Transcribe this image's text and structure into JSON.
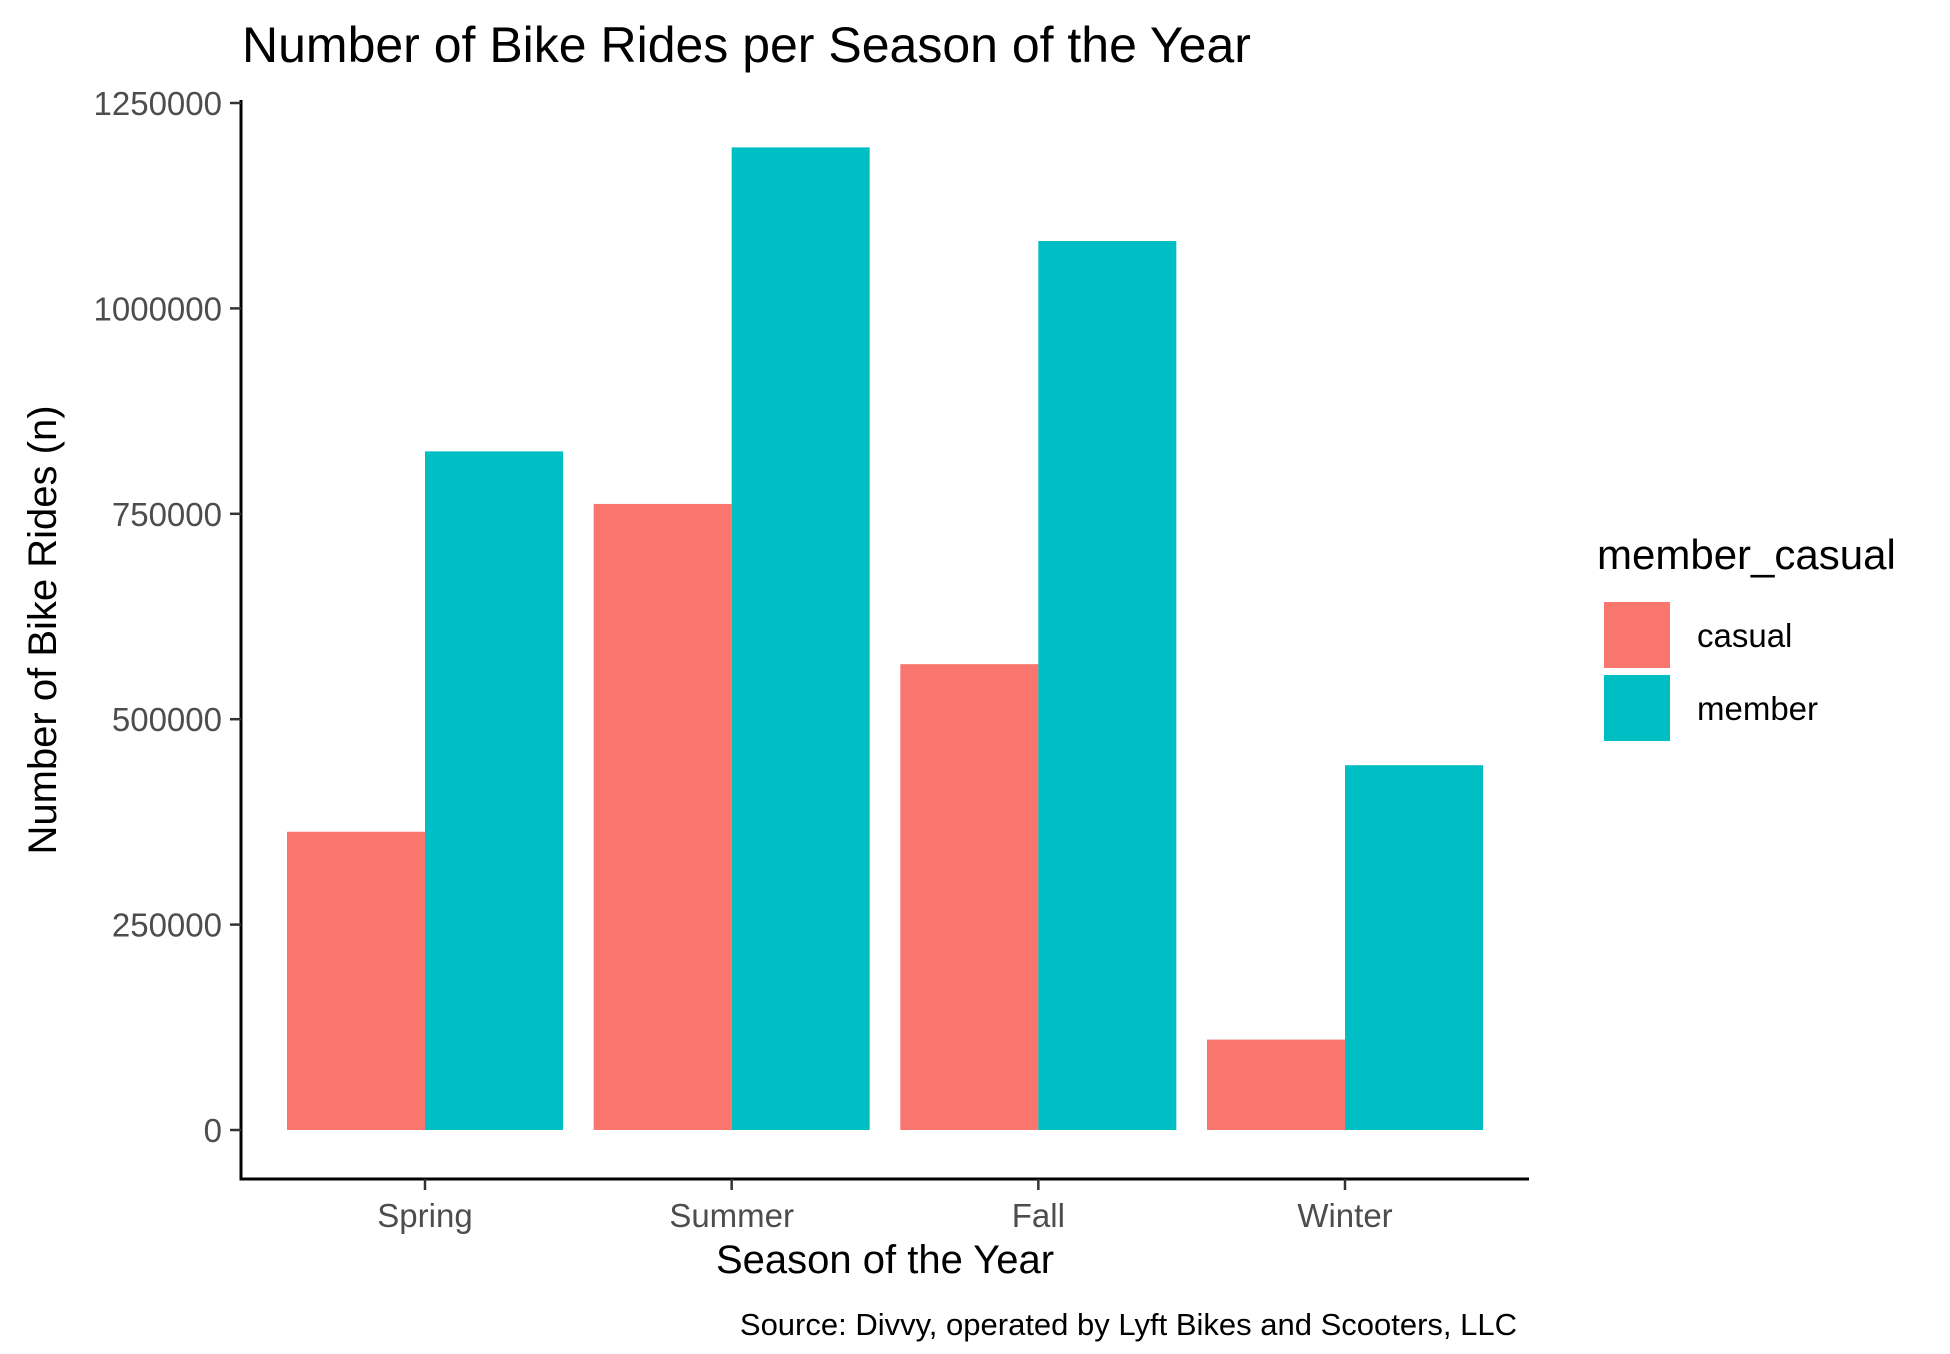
{
  "chart_data": {
    "type": "bar",
    "title": "Number of Bike Rides per Season of the Year",
    "xlabel": "Season of the Year",
    "ylabel": "Number of Bike Rides (n)",
    "caption": "Source: Divvy, operated by Lyft Bikes and Scooters, LLC",
    "categories": [
      "Spring",
      "Summer",
      "Fall",
      "Winter"
    ],
    "series": [
      {
        "name": "casual",
        "values": [
          363000,
          762000,
          567000,
          110000
        ],
        "color": "#F8766D"
      },
      {
        "name": "member",
        "values": [
          826000,
          1196000,
          1082000,
          444000
        ],
        "color": "#00BFC4"
      }
    ],
    "ylim": [
      0,
      1250000
    ],
    "yticks": [
      0,
      250000,
      500000,
      750000,
      1000000,
      1250000
    ],
    "ytick_labels": [
      "0",
      "250000",
      "500000",
      "750000",
      "1000000",
      "1250000"
    ],
    "legend": {
      "title": "member_casual",
      "position": "right"
    },
    "grid": false
  }
}
